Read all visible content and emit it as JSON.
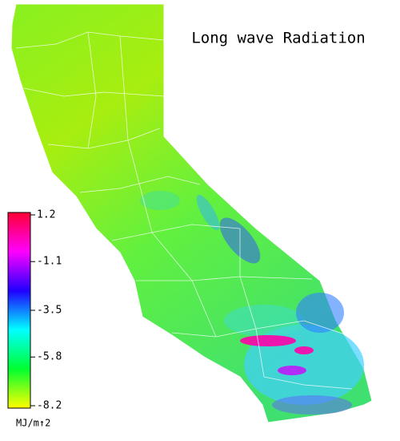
{
  "title": "Long wave Radiation",
  "colorbar": {
    "lim": [
      -8.2,
      1.2
    ],
    "ticks": [
      1.2,
      -1.1,
      -3.5,
      -5.8,
      -8.2
    ],
    "unit": "MJ/m↑2",
    "colors": [
      "#ff0033",
      "#ff00ff",
      "#2000ff",
      "#00ffff",
      "#00ff30",
      "#ffff00"
    ]
  }
}
